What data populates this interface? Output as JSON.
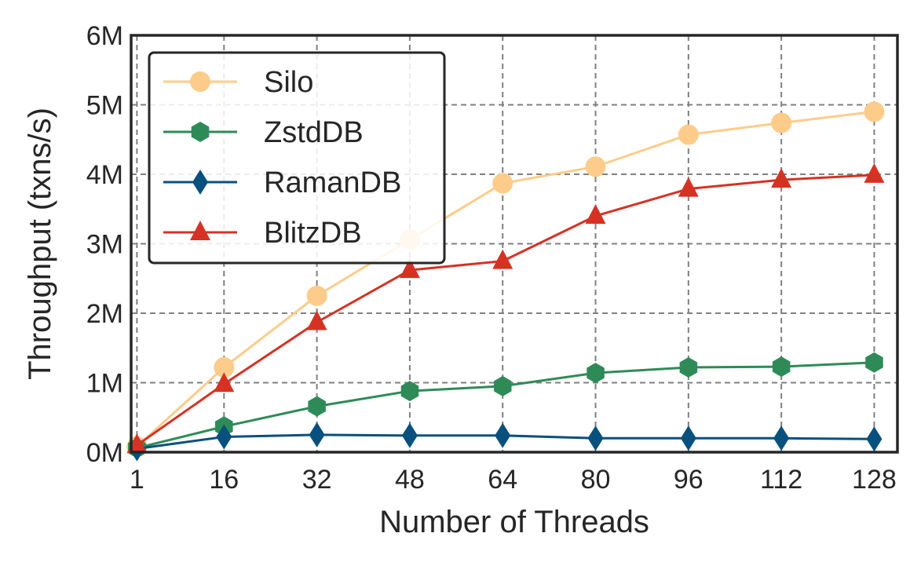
{
  "chart_data": {
    "type": "line",
    "title": "",
    "xlabel": "Number of Threads",
    "ylabel": "Throughput (txns/s)",
    "x": [
      1,
      16,
      32,
      48,
      64,
      80,
      96,
      112,
      128
    ],
    "xlim": [
      0,
      132
    ],
    "ylim": [
      0,
      6
    ],
    "x_ticks": [
      "1",
      "16",
      "32",
      "48",
      "64",
      "80",
      "96",
      "112",
      "128"
    ],
    "y_ticks": [
      "0M",
      "1M",
      "2M",
      "3M",
      "4M",
      "5M",
      "6M"
    ],
    "grid": true,
    "legend_position": "top-left",
    "series": [
      {
        "name": "Silo",
        "marker": "circle",
        "color": "#fdcc8a",
        "values": [
          0.08,
          1.22,
          2.25,
          3.06,
          3.87,
          4.11,
          4.57,
          4.74,
          4.9
        ]
      },
      {
        "name": "ZstdDB",
        "marker": "hexagon",
        "color": "#2e8b57",
        "values": [
          0.06,
          0.37,
          0.66,
          0.88,
          0.95,
          1.14,
          1.22,
          1.23,
          1.29
        ]
      },
      {
        "name": "RamanDB",
        "marker": "diamond",
        "color": "#08507e",
        "values": [
          0.05,
          0.22,
          0.25,
          0.24,
          0.24,
          0.2,
          0.2,
          0.2,
          0.19
        ]
      },
      {
        "name": "BlitzDB",
        "marker": "triangle",
        "color": "#d63224",
        "values": [
          0.1,
          0.98,
          1.87,
          2.62,
          2.75,
          3.4,
          3.79,
          3.92,
          3.99
        ]
      }
    ]
  }
}
